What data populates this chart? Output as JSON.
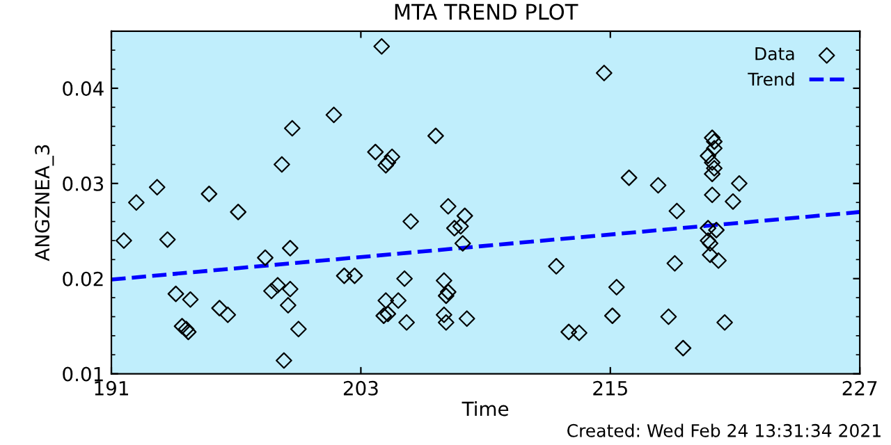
{
  "chart_data": {
    "type": "scatter",
    "title": "MTA TREND PLOT",
    "xlabel": "Time",
    "ylabel": "ANGZNEA_3",
    "annotations": [
      "Created: Wed Feb 24 13:31:34 2021"
    ],
    "xlim": [
      191,
      227
    ],
    "xticks": [
      191,
      203,
      215,
      227
    ],
    "ylim": [
      0.01,
      0.046
    ],
    "yticks": [
      0.01,
      0.02,
      0.03,
      0.04
    ],
    "legend": "top right",
    "grid": false,
    "series": [
      {
        "name": "Data",
        "marker": "diamond",
        "color": "#000000",
        "x": [
          191.6,
          192.2,
          193.2,
          193.7,
          194.1,
          194.4,
          194.6,
          194.7,
          194.8,
          195.7,
          196.2,
          196.6,
          197.1,
          198.4,
          198.7,
          199.0,
          199.2,
          199.3,
          199.5,
          199.6,
          199.6,
          199.7,
          200.0,
          201.7,
          202.2,
          202.7,
          203.7,
          204.0,
          204.1,
          204.2,
          204.3,
          204.2,
          204.3,
          204.5,
          204.8,
          205.1,
          205.2,
          205.4,
          206.6,
          207.0,
          207.0,
          207.1,
          207.1,
          207.2,
          207.2,
          207.5,
          207.8,
          208.0,
          207.9,
          208.1,
          212.4,
          213.0,
          213.5,
          214.7,
          215.1,
          215.3,
          215.9,
          217.3,
          217.8,
          218.1,
          218.2,
          218.5,
          219.7,
          219.7,
          219.9,
          220.0,
          220.0,
          219.9,
          220.0,
          219.9,
          219.9,
          220.1,
          219.7,
          219.8,
          219.8,
          220.2,
          220.5,
          220.9,
          221.2
        ],
        "values": [
          0.024,
          0.028,
          0.0296,
          0.0241,
          0.0184,
          0.015,
          0.0147,
          0.0144,
          0.0178,
          0.0289,
          0.0169,
          0.0162,
          0.027,
          0.0222,
          0.0187,
          0.0193,
          0.032,
          0.0114,
          0.0172,
          0.0232,
          0.0189,
          0.0358,
          0.0147,
          0.0372,
          0.0203,
          0.0203,
          0.0333,
          0.0444,
          0.0161,
          0.0177,
          0.0163,
          0.0319,
          0.0322,
          0.0328,
          0.0177,
          0.02,
          0.0154,
          0.026,
          0.035,
          0.0162,
          0.0198,
          0.0154,
          0.0182,
          0.0186,
          0.0276,
          0.0253,
          0.0255,
          0.0266,
          0.0237,
          0.0158,
          0.0213,
          0.0144,
          0.0143,
          0.0416,
          0.0161,
          0.0191,
          0.0306,
          0.0298,
          0.016,
          0.0216,
          0.0271,
          0.0127,
          0.0253,
          0.0329,
          0.0348,
          0.0344,
          0.0337,
          0.0322,
          0.0316,
          0.031,
          0.0288,
          0.0251,
          0.024,
          0.0237,
          0.0225,
          0.0219,
          0.0154,
          0.0281,
          0.03
        ]
      },
      {
        "name": "Trend",
        "type": "line",
        "line_style": "dashed",
        "color": "#0000ff",
        "x": [
          191,
          227
        ],
        "values": [
          0.0199,
          0.027
        ]
      }
    ]
  }
}
